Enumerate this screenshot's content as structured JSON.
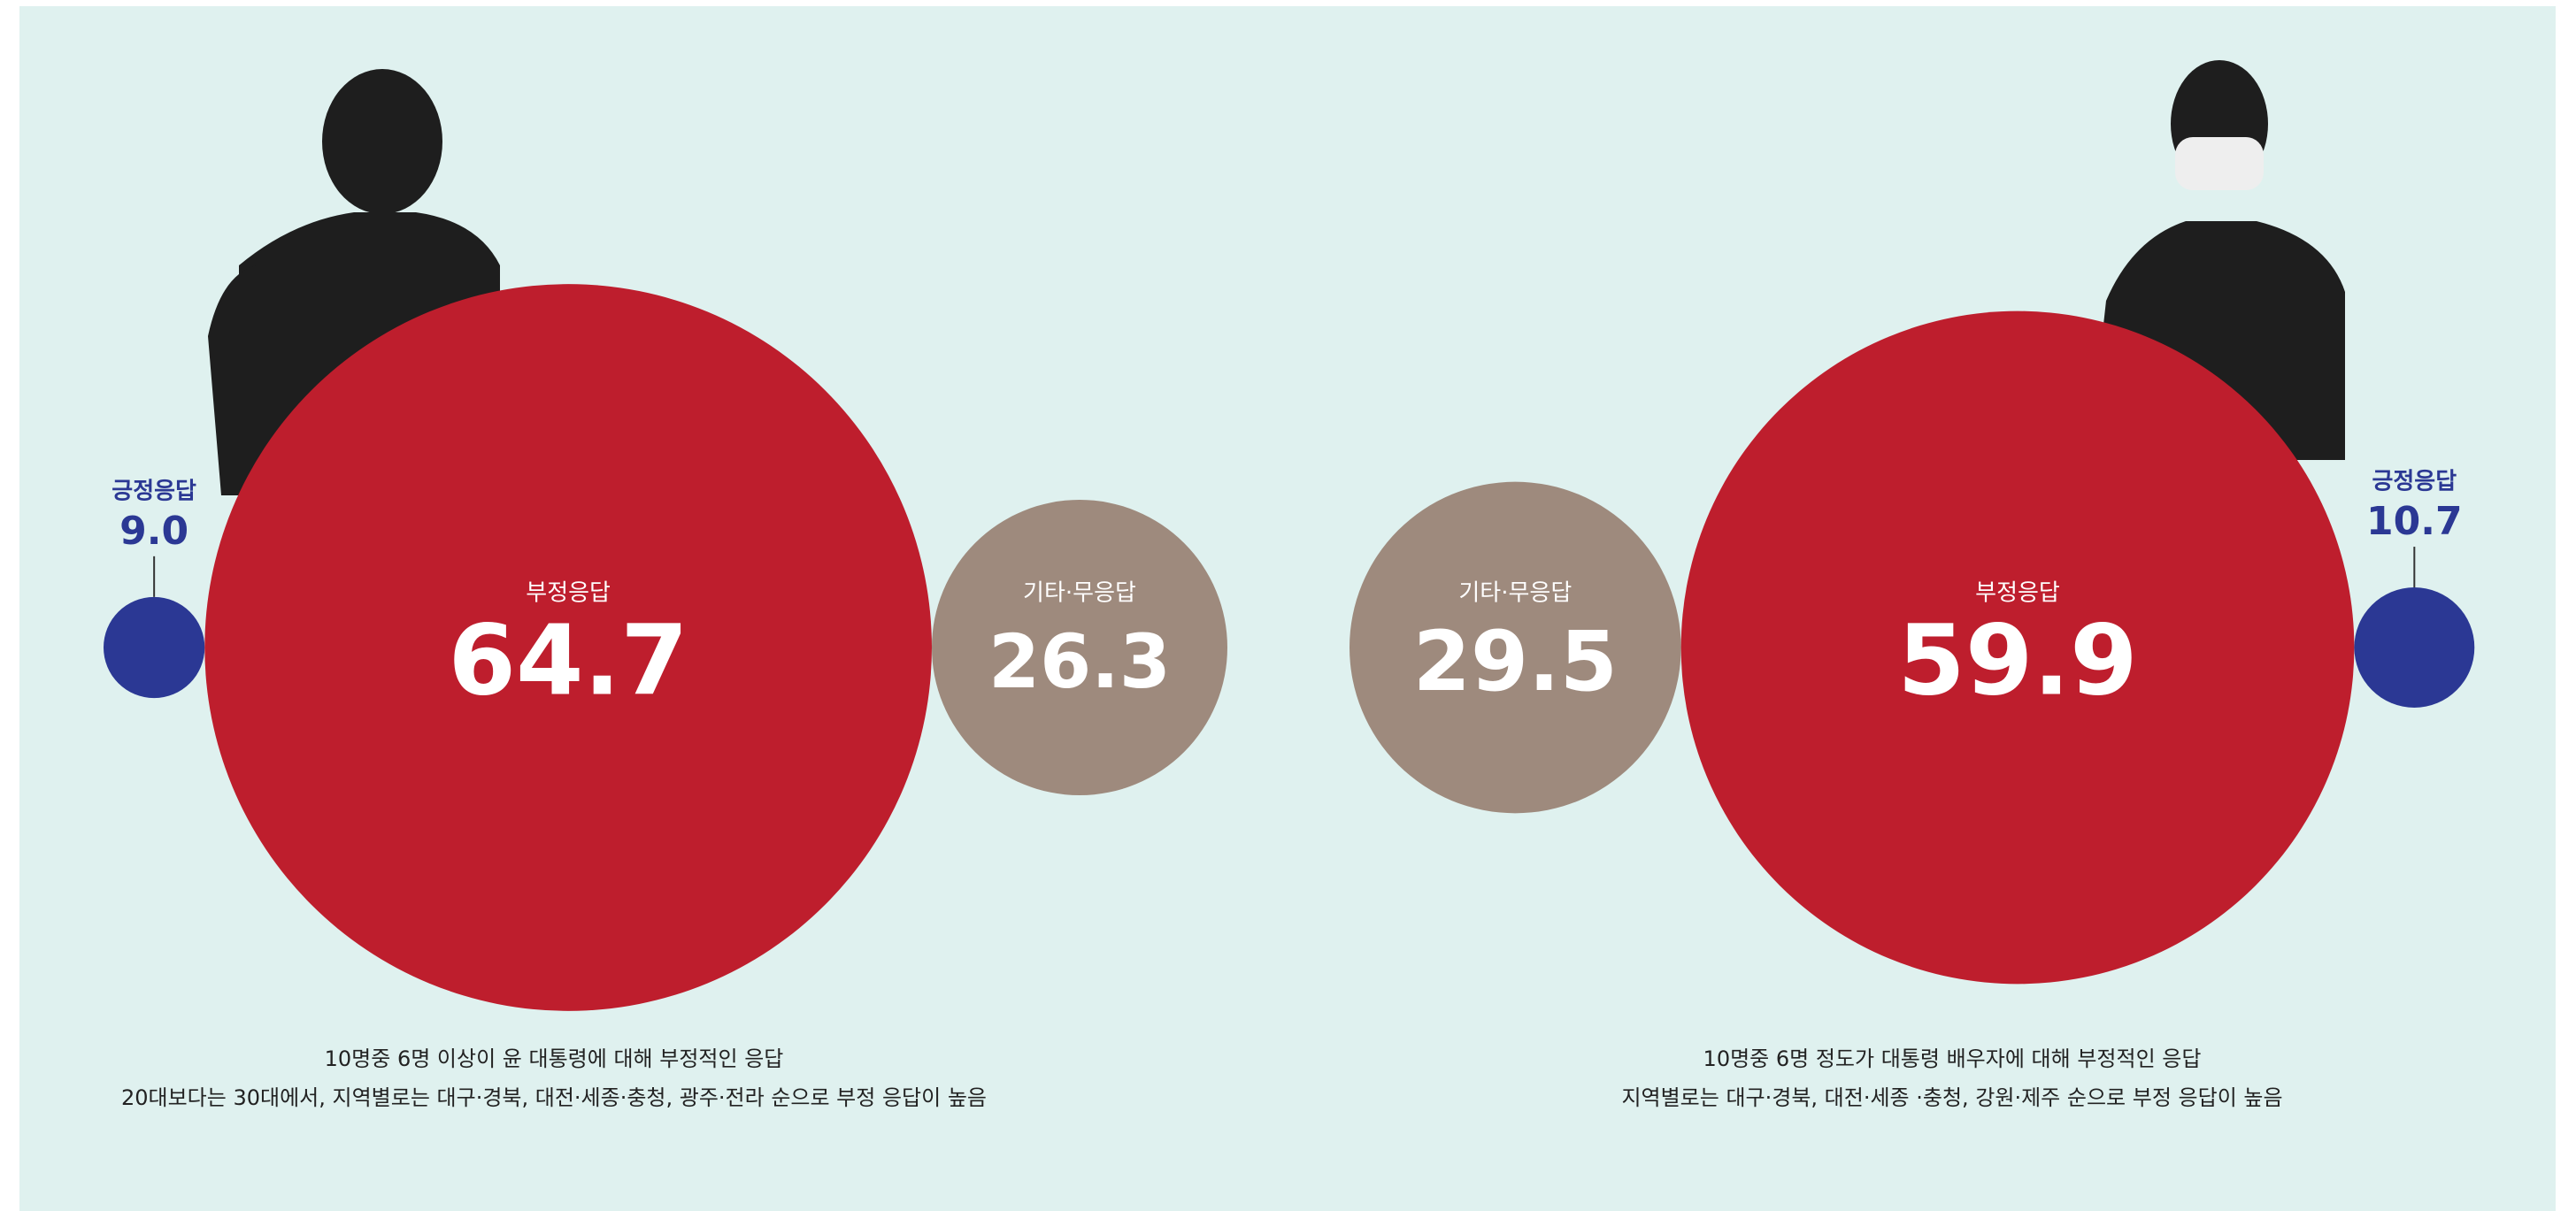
{
  "chart_data": [
    {
      "type": "bubble",
      "categories": [
        "긍정응답",
        "부정응답",
        "기타·무응답"
      ],
      "values": [
        9.0,
        64.7,
        26.3
      ],
      "value_labels": [
        "9.0",
        "64.7",
        "26.3"
      ],
      "colors": [
        "#2b3894",
        "#be1e2d",
        "#9e8a7d"
      ],
      "notes": [
        "10명중 6명 이상이 윤 대통령에 대해 부정적인 응답",
        "20대보다는 30대에서, 지역별로는 대구·경북, 대전·세종·충청, 광주·전라 순으로 부정 응답이 높음"
      ]
    },
    {
      "type": "bubble",
      "categories": [
        "기타·무응답",
        "부정응답",
        "긍정응답"
      ],
      "values": [
        29.5,
        59.9,
        10.7
      ],
      "value_labels": [
        "29.5",
        "59.9",
        "10.7"
      ],
      "colors": [
        "#9e8a7d",
        "#be1e2d",
        "#2b3894"
      ],
      "notes": [
        "10명중 6명 정도가 대통령 배우자에 대해 부정적인 응답",
        "지역별로는 대구·경북, 대전·세종 ·충청, 강원·제주 순으로 부정 응답이 높음"
      ]
    }
  ]
}
